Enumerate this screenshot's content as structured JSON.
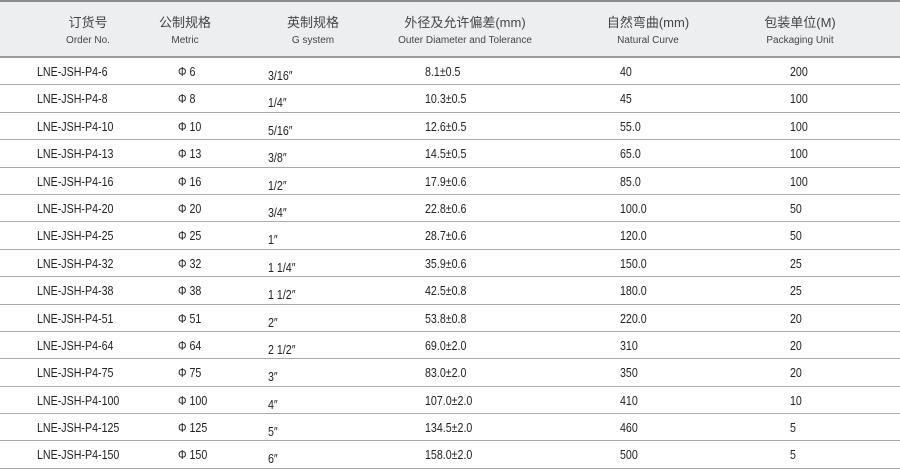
{
  "headers": [
    {
      "zh": "订货号",
      "en": "Order No."
    },
    {
      "zh": "公制规格",
      "en": "Metric"
    },
    {
      "zh": "英制规格",
      "en": "G system"
    },
    {
      "zh": "外径及允许偏差(mm)",
      "en": "Outer Diameter and Tolerance"
    },
    {
      "zh": "自然弯曲(mm)",
      "en": "Natural Curve"
    },
    {
      "zh": "包装单位(M)",
      "en": "Packaging Unit"
    }
  ],
  "rows": [
    [
      "LNE-JSH-P4-6",
      "Φ 6",
      "3/16″",
      "8.1±0.5",
      "40",
      "200"
    ],
    [
      "LNE-JSH-P4-8",
      "Φ 8",
      "1/4″",
      "10.3±0.5",
      "45",
      "100"
    ],
    [
      "LNE-JSH-P4-10",
      "Φ 10",
      "5/16″",
      "12.6±0.5",
      "55.0",
      "100"
    ],
    [
      "LNE-JSH-P4-13",
      "Φ 13",
      "3/8″",
      "14.5±0.5",
      "65.0",
      "100"
    ],
    [
      "LNE-JSH-P4-16",
      "Φ 16",
      "1/2″",
      "17.9±0.6",
      "85.0",
      "100"
    ],
    [
      "LNE-JSH-P4-20",
      "Φ 20",
      "3/4″",
      "22.8±0.6",
      "100.0",
      "50"
    ],
    [
      "LNE-JSH-P4-25",
      "Φ 25",
      "1″",
      "28.7±0.6",
      "120.0",
      "50"
    ],
    [
      "LNE-JSH-P4-32",
      "Φ 32",
      "1 1/4″",
      "35.9±0.6",
      "150.0",
      "25"
    ],
    [
      "LNE-JSH-P4-38",
      "Φ 38",
      "1 1/2″",
      "42.5±0.8",
      "180.0",
      "25"
    ],
    [
      "LNE-JSH-P4-51",
      "Φ 51",
      "2″",
      "53.8±0.8",
      "220.0",
      "20"
    ],
    [
      "LNE-JSH-P4-64",
      "Φ 64",
      "2 1/2″",
      "69.0±2.0",
      "310",
      "20"
    ],
    [
      "LNE-JSH-P4-75",
      "Φ 75",
      "3″",
      "83.0±2.0",
      "350",
      "20"
    ],
    [
      "LNE-JSH-P4-100",
      "Φ 100",
      "4″",
      "107.0±2.0",
      "410",
      "10"
    ],
    [
      "LNE-JSH-P4-125",
      "Φ 125",
      "5″",
      "134.5±2.0",
      "460",
      "5"
    ],
    [
      "LNE-JSH-P4-150",
      "Φ 150",
      "6″",
      "158.0±2.0",
      "500",
      "5"
    ]
  ]
}
